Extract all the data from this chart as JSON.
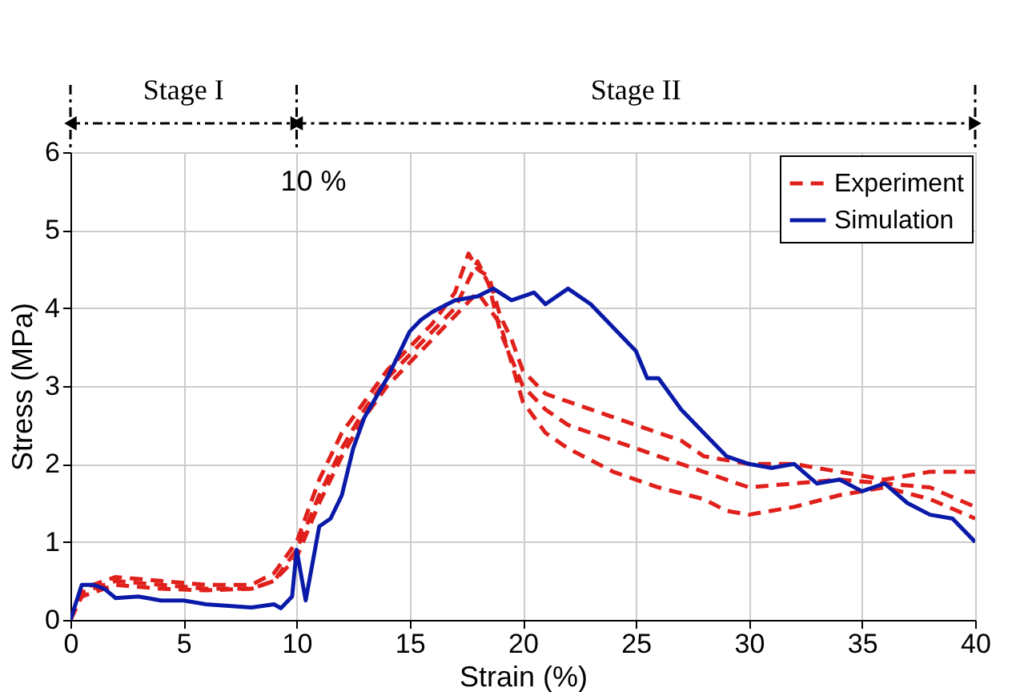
{
  "chart_data": {
    "type": "line",
    "xlabel": "Strain (%)",
    "ylabel": "Stress (MPa)",
    "xlim": [
      0,
      40
    ],
    "xticks": [
      0,
      5,
      10,
      15,
      20,
      25,
      30,
      35,
      40
    ],
    "ylim": [
      0,
      6
    ],
    "yticks": [
      0,
      1,
      2,
      3,
      4,
      5,
      6
    ],
    "grid": true,
    "legend": "top right",
    "ref_lines": [
      {
        "axis": "x",
        "value": 10,
        "label": "10 %",
        "color": "#000000"
      }
    ],
    "annotations": [
      "Stage I",
      "Stage II"
    ],
    "series": [
      {
        "name": "Experiment",
        "color": "#e0201b",
        "line_style": "dashed",
        "x": [
          0,
          0.5,
          1,
          2,
          4,
          6,
          8,
          9,
          10,
          11,
          12,
          13,
          14,
          15,
          16,
          17,
          17.6,
          18,
          18.5,
          19,
          19.5,
          20,
          21,
          22,
          23,
          25,
          27,
          28,
          30,
          32,
          34,
          36,
          38,
          40
        ],
        "values": [
          0,
          0.4,
          0.45,
          0.55,
          0.5,
          0.45,
          0.45,
          0.6,
          1.0,
          1.8,
          2.4,
          2.8,
          3.2,
          3.5,
          3.8,
          4.2,
          4.7,
          4.5,
          4.4,
          3.9,
          3.6,
          3.2,
          2.9,
          2.8,
          2.7,
          2.5,
          2.3,
          2.1,
          2.0,
          2.0,
          1.9,
          1.8,
          1.9,
          1.9
        ]
      },
      {
        "color": "#e0201b",
        "line_style": "dashed",
        "x": [
          0,
          0.5,
          2,
          4,
          6,
          8,
          9,
          10,
          11,
          12,
          13,
          14,
          15,
          16,
          17,
          18,
          18.5,
          19,
          20,
          21,
          22,
          24,
          26,
          28,
          30,
          32,
          34,
          36,
          38,
          40
        ],
        "values": [
          0,
          0.35,
          0.5,
          0.45,
          0.4,
          0.4,
          0.5,
          0.9,
          1.6,
          2.2,
          2.7,
          3.1,
          3.4,
          3.7,
          4.0,
          4.6,
          4.3,
          3.7,
          3.0,
          2.7,
          2.5,
          2.3,
          2.1,
          1.9,
          1.7,
          1.75,
          1.8,
          1.75,
          1.7,
          1.45
        ]
      },
      {
        "color": "#e0201b",
        "line_style": "dashed",
        "x": [
          0,
          0.5,
          2,
          4,
          6,
          8,
          9,
          10,
          11,
          12,
          13,
          14,
          15,
          16,
          17,
          18,
          19,
          20,
          21,
          22,
          24,
          26,
          28,
          29,
          30,
          31,
          32,
          34,
          36,
          38,
          40
        ],
        "values": [
          0,
          0.3,
          0.45,
          0.4,
          0.38,
          0.4,
          0.5,
          0.8,
          1.5,
          2.1,
          2.6,
          3.0,
          3.3,
          3.6,
          3.9,
          4.2,
          3.8,
          2.8,
          2.4,
          2.2,
          1.9,
          1.7,
          1.55,
          1.4,
          1.35,
          1.4,
          1.45,
          1.6,
          1.7,
          1.55,
          1.3
        ]
      },
      {
        "name": "Simulation",
        "color": "#0a1aa8",
        "line_style": "solid",
        "x": [
          0,
          0.5,
          1,
          1.5,
          2,
          3,
          4,
          5,
          6,
          7,
          8,
          9,
          9.3,
          9.8,
          10,
          10.4,
          11,
          11.5,
          12,
          12.5,
          13,
          14,
          14.5,
          15,
          15.5,
          16,
          17,
          18,
          18.7,
          19.5,
          20,
          20.5,
          21,
          22,
          23,
          24,
          25,
          25.5,
          26,
          27,
          28,
          29,
          30,
          31,
          32,
          33,
          34,
          35,
          36,
          37,
          38,
          39,
          40
        ],
        "values": [
          0,
          0.45,
          0.45,
          0.4,
          0.28,
          0.3,
          0.25,
          0.25,
          0.2,
          0.18,
          0.16,
          0.2,
          0.15,
          0.3,
          0.9,
          0.25,
          1.2,
          1.3,
          1.6,
          2.2,
          2.6,
          3.1,
          3.4,
          3.7,
          3.85,
          3.95,
          4.1,
          4.15,
          4.25,
          4.1,
          4.15,
          4.2,
          4.05,
          4.25,
          4.05,
          3.75,
          3.45,
          3.1,
          3.1,
          2.7,
          2.4,
          2.1,
          2.0,
          1.95,
          2.0,
          1.75,
          1.8,
          1.65,
          1.75,
          1.5,
          1.35,
          1.3,
          1.0
        ]
      }
    ]
  }
}
